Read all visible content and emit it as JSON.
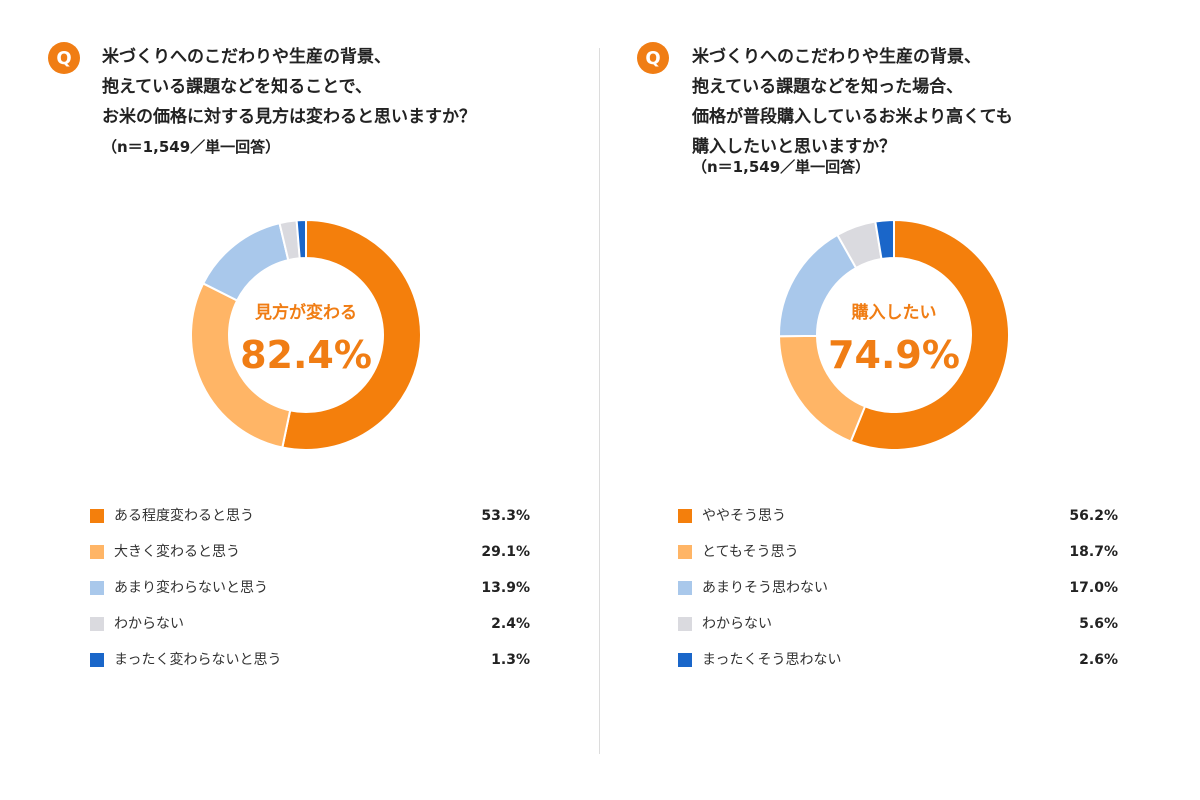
{
  "q_badge": "Q",
  "left": {
    "question": [
      "米づくりへのこだわりや生産の背景、",
      "抱えている課題などを知ることで、",
      "お米の価格に対する見方は変わると思いますか？"
    ],
    "sample": "（n＝1,549／単一回答）",
    "center_label": "見方が変わる",
    "center_value": "82.4%"
  },
  "right": {
    "question": [
      "米づくりへのこだわりや生産の背景、",
      "抱えている課題などを知った場合、",
      "価格が普段購入しているお米より高くても",
      "購入したいと思いますか？"
    ],
    "sample": "（n＝1,549／単一回答）",
    "center_label": "購入したい",
    "center_value": "74.9%"
  },
  "chart_data": [
    {
      "type": "pie",
      "subtype": "donut",
      "categories": [
        "ある程度変わると思う",
        "大きく変わると思う",
        "あまり変わらないと思う",
        "わからない",
        "まったく変わらないと思う"
      ],
      "values": [
        53.3,
        29.1,
        13.9,
        2.4,
        1.3
      ],
      "value_labels": [
        "53.3%",
        "29.1%",
        "13.9%",
        "2.4%",
        "1.3%"
      ],
      "colors": [
        "#f47f0c",
        "#ffb566",
        "#a9c8eb",
        "#dadadf",
        "#1a66c9"
      ],
      "start": "top",
      "direction": "clockwise",
      "legend_position": "bottom"
    },
    {
      "type": "pie",
      "subtype": "donut",
      "categories": [
        "ややそう思う",
        "とてもそう思う",
        "あまりそう思わない",
        "わからない",
        "まったくそう思わない"
      ],
      "values": [
        56.2,
        18.7,
        17.0,
        5.6,
        2.6
      ],
      "value_labels": [
        "56.2%",
        "18.7%",
        "17.0%",
        "5.6%",
        "2.6%"
      ],
      "colors": [
        "#f47f0c",
        "#ffb566",
        "#a9c8eb",
        "#dadadf",
        "#1a66c9"
      ],
      "start": "top",
      "direction": "clockwise",
      "legend_position": "bottom"
    }
  ]
}
